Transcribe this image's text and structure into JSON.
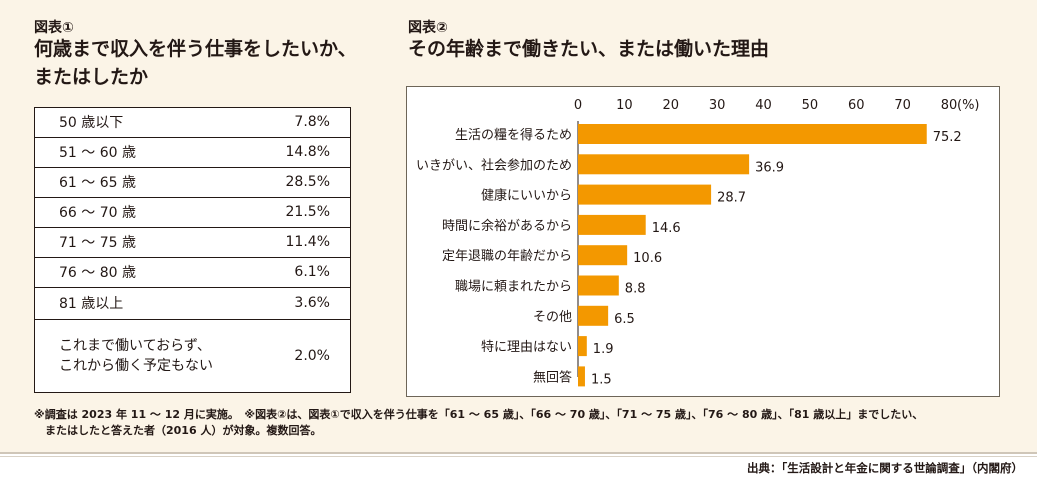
{
  "table_figure": {
    "label": "図表①",
    "title_line1": "何歳まで収入を伴う仕事をしたいか、",
    "title_line2": "またはしたか",
    "rows": [
      {
        "label": "50 歳以下",
        "value": "7.8%"
      },
      {
        "label": "51 ～ 60 歳",
        "value": "14.8%"
      },
      {
        "label": "61 ～ 65 歳",
        "value": "28.5%"
      },
      {
        "label": "66 ～ 70 歳",
        "value": "21.5%"
      },
      {
        "label": "71 ～ 75 歳",
        "value": "11.4%"
      },
      {
        "label": "76 ～ 80 歳",
        "value": "6.1%"
      },
      {
        "label": "81 歳以上",
        "value": "3.6%"
      }
    ],
    "last_row": {
      "line1": "これまで働いておらず、",
      "line2": "これから働く予定もない",
      "value": "2.0%"
    }
  },
  "chart_figure": {
    "label": "図表②",
    "title": "その年齢まで働きたい、または働いた理由"
  },
  "chart_data": {
    "type": "bar",
    "orientation": "horizontal",
    "categories": [
      "生活の糧を得るため",
      "いきがい、社会参加のため",
      "健康にいいから",
      "時間に余裕があるから",
      "定年退職の年齢だから",
      "職場に頼まれたから",
      "その他",
      "特に理由はない",
      "無回答"
    ],
    "values": [
      75.2,
      36.9,
      28.7,
      14.6,
      10.6,
      8.8,
      6.5,
      1.9,
      1.5
    ],
    "value_labels": [
      "75.2",
      "36.9",
      "28.7",
      "14.6",
      "10.6",
      "8.8",
      "6.5",
      "1.9",
      "1.5"
    ],
    "xticks": [
      "0",
      "10",
      "20",
      "30",
      "40",
      "50",
      "60",
      "70",
      "80"
    ],
    "xunit": "(%)",
    "xlim": [
      0,
      80
    ],
    "grid": false,
    "bar_color": "#f39800"
  },
  "notes": {
    "line1": "※調査は 2023 年 11 ～ 12 月に実施。　※図表②は、図表①で収入を伴う仕事を「61 ～ 65 歳」、「66 ～ 70 歳」、「71 ～ 75 歳」、「76 ～ 80 歳」、「81 歳以上」までしたい、",
    "line2": "またはしたと答えた者（2016 人）が対象。複数回答。"
  },
  "source": "出典：「生活設計と年金に関する世論調査」（内閣府）"
}
